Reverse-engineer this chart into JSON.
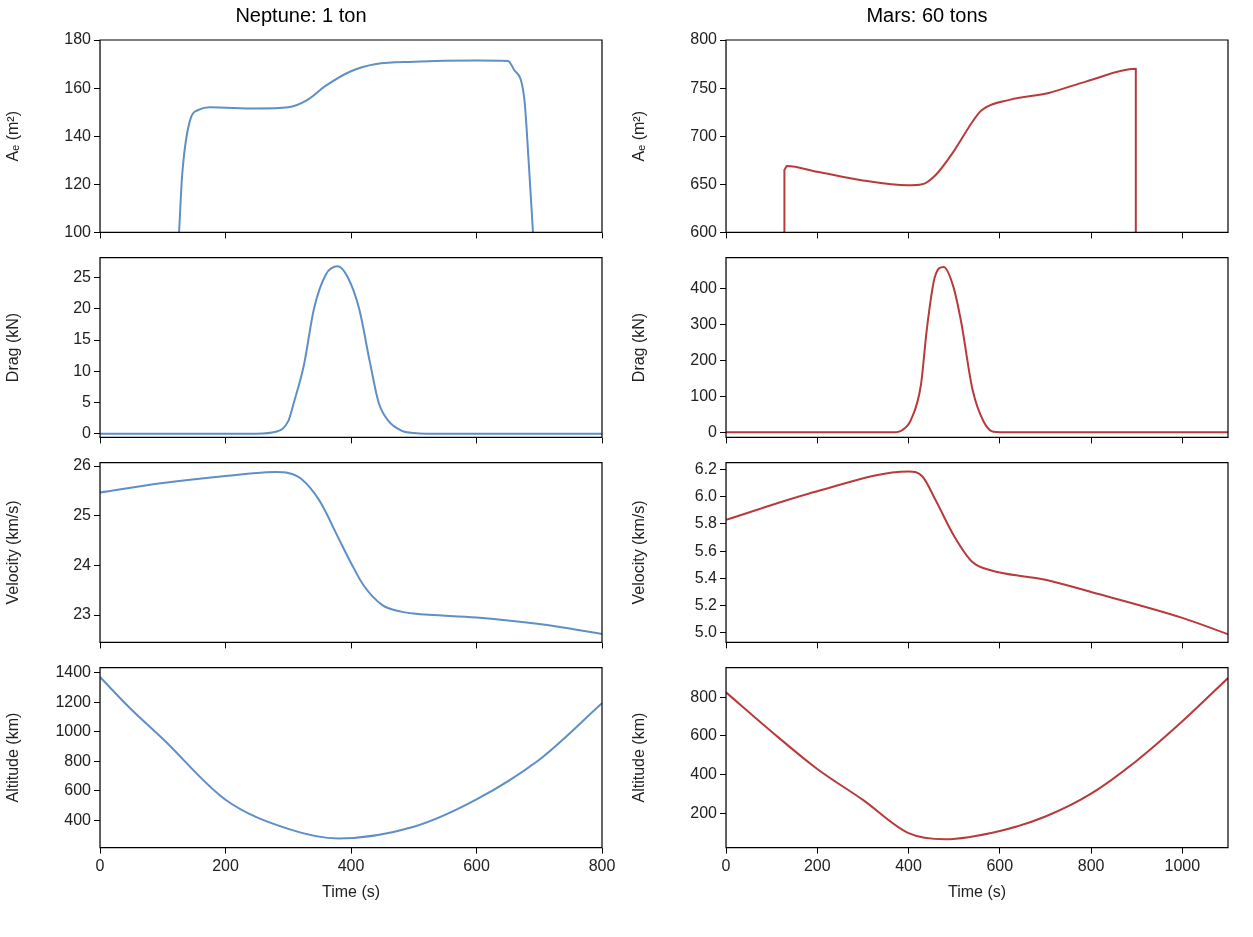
{
  "chart_data": [
    {
      "type": "line",
      "title": "Neptune: 1 ton",
      "ylabel": "Aₑ (m²)",
      "xlim": [
        0,
        800
      ],
      "xticks": [
        0,
        200,
        400,
        600,
        800
      ],
      "ylim": [
        100,
        180
      ],
      "yticks": [
        100,
        120,
        140,
        160,
        180
      ],
      "tick_labels": "y",
      "color": "#5e8fc6",
      "x": [
        126,
        131,
        144,
        158,
        175,
        250,
        300,
        330,
        360,
        400,
        440,
        500,
        600,
        650,
        659,
        676,
        683,
        690
      ],
      "values": [
        100,
        124,
        147,
        151,
        152,
        151.5,
        152,
        155,
        161,
        167,
        170,
        171,
        171.5,
        171.3,
        168,
        156,
        130,
        100
      ]
    },
    {
      "type": "line",
      "ylabel": "Drag (kN)",
      "xlim": [
        0,
        800
      ],
      "xticks": [
        0,
        200,
        400,
        600,
        800
      ],
      "ylim": [
        -0.6,
        28.2
      ],
      "yticks": [
        0,
        5,
        10,
        15,
        20,
        25
      ],
      "tick_labels": "y",
      "color": "#5e8fc6",
      "x": [
        0,
        250,
        280,
        300,
        309,
        325,
        341,
        360,
        379,
        395,
        413,
        430,
        444,
        460,
        480,
        500,
        520,
        800
      ],
      "values": [
        0,
        0,
        0.3,
        2,
        5,
        11,
        20,
        25.5,
        26.8,
        25,
        20,
        11.5,
        5,
        2,
        0.5,
        0.1,
        0,
        0
      ]
    },
    {
      "type": "line",
      "ylabel": "Velocity (km/s)",
      "xlim": [
        0,
        800
      ],
      "xticks": [
        0,
        200,
        400,
        600,
        800
      ],
      "ylim": [
        22.45,
        26.07
      ],
      "yticks": [
        23,
        24,
        25,
        26
      ],
      "tick_labels": "y",
      "color": "#5e8fc6",
      "x": [
        0,
        100,
        200,
        280,
        300,
        320,
        350,
        380,
        400,
        420,
        450,
        480,
        500,
        600,
        700,
        800
      ],
      "values": [
        25.47,
        25.66,
        25.8,
        25.88,
        25.86,
        25.75,
        25.3,
        24.55,
        24.05,
        23.6,
        23.2,
        23.07,
        23.03,
        22.95,
        22.82,
        22.62
      ]
    },
    {
      "type": "line",
      "ylabel": "Altitude (km)",
      "xlabel": "Time (s)",
      "xlim": [
        0,
        800
      ],
      "xticks": [
        0,
        200,
        400,
        600,
        800
      ],
      "ylim": [
        216,
        1434
      ],
      "yticks": [
        400,
        600,
        800,
        1000,
        1200,
        1400
      ],
      "color": "#5e8fc6",
      "x": [
        0,
        50,
        100,
        200,
        300,
        380,
        500,
        600,
        700,
        800
      ],
      "values": [
        1370,
        1150,
        952,
        540,
        343,
        278,
        357,
        542,
        811,
        1193
      ]
    },
    {
      "type": "line",
      "title": "Mars: 60 tons",
      "ylabel": "Aₑ (m²)",
      "xlim": [
        0,
        1100
      ],
      "xticks": [
        0,
        200,
        400,
        600,
        800,
        1000
      ],
      "ylim": [
        600,
        800
      ],
      "yticks": [
        600,
        650,
        700,
        750,
        800
      ],
      "tick_labels": "y",
      "color": "#b83a3a",
      "x": [
        128,
        128,
        133,
        200,
        300,
        398,
        430,
        460,
        500,
        540,
        560,
        623,
        707,
        790,
        898,
        898
      ],
      "values": [
        600,
        665,
        669,
        663,
        654,
        649,
        650,
        660,
        685,
        715,
        727,
        738,
        745,
        757,
        770,
        600
      ]
    },
    {
      "type": "line",
      "ylabel": "Drag (kN)",
      "xlim": [
        0,
        1100
      ],
      "xticks": [
        0,
        200,
        400,
        600,
        800,
        1000
      ],
      "ylim": [
        -14,
        486
      ],
      "yticks": [
        0,
        100,
        200,
        300,
        400
      ],
      "tick_labels": "y",
      "color": "#b83a3a",
      "x": [
        0,
        365,
        386,
        405,
        427,
        440,
        457,
        477,
        498,
        515,
        540,
        565,
        586,
        623,
        1100
      ],
      "values": [
        0,
        0,
        6,
        34,
        131,
        286,
        429,
        460,
        406,
        309,
        120,
        29,
        2,
        0,
        0
      ]
    },
    {
      "type": "line",
      "ylabel": "Velocity (km/s)",
      "xlim": [
        0,
        1100
      ],
      "xticks": [
        0,
        200,
        400,
        600,
        800,
        1000
      ],
      "ylim": [
        4.93,
        6.25
      ],
      "yticks": [
        {
          "value": 5,
          "label": "5.0"
        },
        5.2,
        5.4,
        5.6,
        5.8,
        {
          "value": 6,
          "label": "6.0"
        },
        6.2
      ],
      "tick_labels": "y",
      "color": "#b83a3a",
      "x": [
        0,
        200,
        400,
        430,
        460,
        500,
        540,
        580,
        700,
        800,
        1000,
        1100
      ],
      "values": [
        5.83,
        6.04,
        6.185,
        6.15,
        5.97,
        5.71,
        5.52,
        5.46,
        5.39,
        5.3,
        5.11,
        4.99
      ]
    },
    {
      "type": "line",
      "ylabel": "Altitude (km)",
      "xlabel": "Time (s)",
      "xlim": [
        0,
        1100
      ],
      "xticks": [
        0,
        200,
        400,
        600,
        800,
        1000
      ],
      "ylim": [
        22,
        954
      ],
      "yticks": [
        200,
        400,
        600,
        800
      ],
      "color": "#b83a3a",
      "x": [
        0,
        100,
        200,
        300,
        400,
        480,
        600,
        700,
        800,
        900,
        1000,
        1100
      ],
      "values": [
        826,
        622,
        429,
        269,
        97,
        65,
        108,
        183,
        301,
        472,
        676,
        900
      ]
    }
  ]
}
